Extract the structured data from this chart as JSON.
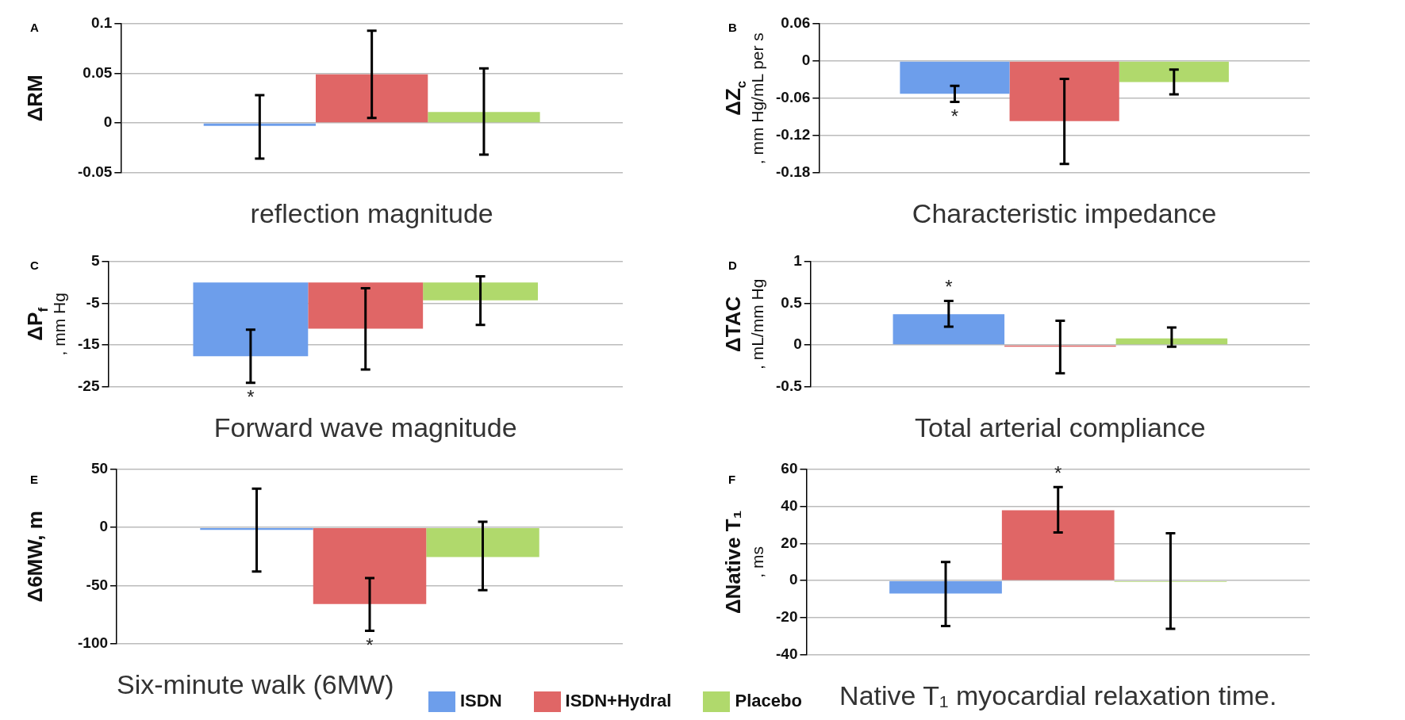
{
  "chart_data": [
    {
      "type": "bar",
      "xlabel": "reflection magnitude",
      "ylabel": "ΔRM",
      "annotations": [
        "A"
      ],
      "categories": [
        null
      ],
      "ylim": [
        -0.05,
        0.1
      ],
      "yticks": [
        -0.05,
        0,
        0.05,
        0.1
      ],
      "grid": "y",
      "series": [
        {
          "color": "#6d9eeb",
          "values": [
            -0.003
          ],
          "errors": [
            [
              -0.036,
              0.028
            ]
          ]
        },
        {
          "color": "#e06666",
          "values": [
            0.049
          ],
          "errors": [
            [
              0.005,
              0.093
            ]
          ]
        },
        {
          "color": "#b0d96c",
          "values": [
            0.011
          ],
          "errors": [
            [
              -0.032,
              0.055
            ]
          ]
        }
      ]
    },
    {
      "type": "bar",
      "xlabel": "Characteristic impedance",
      "ylabel": "ΔZ$_{c}$\n, mm Hg/mL per s",
      "annotations": [
        "B"
      ],
      "categories": [
        null
      ],
      "ylim": [
        -0.18,
        0.06
      ],
      "yticks": [
        -0.18,
        -0.12,
        -0.06,
        0,
        0.06
      ],
      "grid": "y",
      "series": [
        {
          "color": "#6d9eeb",
          "values": [
            -0.053
          ],
          "errors": [
            [
              -0.066,
              -0.04
            ]
          ],
          "value_labels": [
            "*"
          ]
        },
        {
          "color": "#e06666",
          "values": [
            -0.097
          ],
          "errors": [
            [
              -0.166,
              -0.029
            ]
          ]
        },
        {
          "color": "#b0d96c",
          "values": [
            -0.034
          ],
          "errors": [
            [
              -0.054,
              -0.014
            ]
          ]
        }
      ]
    },
    {
      "type": "bar",
      "xlabel": "Forward wave magnitude",
      "ylabel": "ΔP$_{f}$\n, mm Hg",
      "annotations": [
        "C"
      ],
      "categories": [
        null
      ],
      "ylim": [
        -25,
        5
      ],
      "yticks": [
        -25,
        -15,
        -5,
        5
      ],
      "grid": "y",
      "series": [
        {
          "color": "#6d9eeb",
          "values": [
            -17.7
          ],
          "errors": [
            [
              -24.1,
              -11.3
            ]
          ],
          "value_labels": [
            "*"
          ]
        },
        {
          "color": "#e06666",
          "values": [
            -11.1
          ],
          "errors": [
            [
              -20.9,
              -1.4
            ]
          ]
        },
        {
          "color": "#b0d96c",
          "values": [
            -4.3
          ],
          "errors": [
            [
              -10.2,
              1.5
            ]
          ]
        }
      ]
    },
    {
      "type": "bar",
      "xlabel": "Total arterial compliance",
      "ylabel": "ΔTAC\n, mL/mm Hg",
      "annotations": [
        "D"
      ],
      "categories": [
        null
      ],
      "ylim": [
        -0.5,
        1
      ],
      "yticks": [
        -0.5,
        0,
        0.5,
        1
      ],
      "grid": "y",
      "series": [
        {
          "color": "#6d9eeb",
          "values": [
            0.37
          ],
          "errors": [
            [
              0.22,
              0.53
            ]
          ],
          "value_labels": [
            "*"
          ]
        },
        {
          "color": "#e06666",
          "values": [
            -0.02
          ],
          "errors": [
            [
              -0.34,
              0.29
            ]
          ]
        },
        {
          "color": "#b0d96c",
          "values": [
            0.08
          ],
          "errors": [
            [
              -0.02,
              0.21
            ]
          ]
        }
      ]
    },
    {
      "type": "bar",
      "xlabel": "Six-minute walk (6MW)",
      "ylabel": "Δ6MW, m",
      "annotations": [
        "E"
      ],
      "categories": [
        null
      ],
      "ylim": [
        -100,
        50
      ],
      "yticks": [
        -100,
        -50,
        0,
        50
      ],
      "grid": "y",
      "legend": "bottom",
      "series": [
        {
          "name": "ISDN",
          "color": "#6d9eeb",
          "values": [
            -2
          ],
          "errors": [
            [
              -38,
              33.5
            ]
          ]
        },
        {
          "name": "ISDN+Hydral",
          "color": "#e06666",
          "values": [
            -66
          ],
          "errors": [
            [
              -89,
              -43.5
            ]
          ],
          "value_labels": [
            "*"
          ]
        },
        {
          "name": "Placebo",
          "color": "#b0d96c",
          "values": [
            -25.5
          ],
          "errors": [
            [
              -54,
              5
            ]
          ]
        }
      ]
    },
    {
      "type": "bar",
      "xlabel": "Native T₁ myocardial relaxation time.",
      "ylabel": "ΔNative T₁\n, ms",
      "annotations": [
        "F"
      ],
      "categories": [
        null
      ],
      "ylim": [
        -40,
        60
      ],
      "yticks": [
        -40,
        -20,
        0,
        20,
        40,
        60
      ],
      "grid": "y",
      "series": [
        {
          "color": "#6d9eeb",
          "values": [
            -7
          ],
          "errors": [
            [
              -24.5,
              10
            ]
          ]
        },
        {
          "color": "#e06666",
          "values": [
            38
          ],
          "errors": [
            [
              26,
              50.5
            ]
          ],
          "value_labels": [
            "*"
          ]
        },
        {
          "color": "#b0d96c",
          "values": [
            -0.7
          ],
          "errors": [
            [
              -26,
              25.5
            ]
          ]
        }
      ]
    }
  ]
}
